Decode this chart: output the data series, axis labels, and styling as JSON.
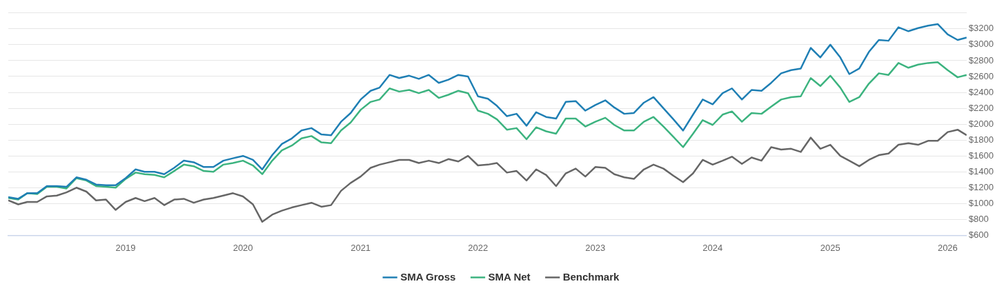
{
  "chart_data": {
    "type": "line",
    "x": [
      "2018-01",
      "2018-02",
      "2018-03",
      "2018-04",
      "2018-05",
      "2018-06",
      "2018-07",
      "2018-08",
      "2018-09",
      "2018-10",
      "2018-11",
      "2018-12",
      "2019-01",
      "2019-02",
      "2019-03",
      "2019-04",
      "2019-05",
      "2019-06",
      "2019-07",
      "2019-08",
      "2019-09",
      "2019-10",
      "2019-11",
      "2019-12",
      "2020-01",
      "2020-02",
      "2020-03",
      "2020-04",
      "2020-05",
      "2020-06",
      "2020-07",
      "2020-08",
      "2020-09",
      "2020-10",
      "2020-11",
      "2020-12",
      "2021-01",
      "2021-02",
      "2021-03",
      "2021-04",
      "2021-05",
      "2021-06",
      "2021-07",
      "2021-08",
      "2021-09",
      "2021-10",
      "2021-11",
      "2021-12",
      "2022-01",
      "2022-02",
      "2022-03",
      "2022-04",
      "2022-05",
      "2022-06",
      "2022-07",
      "2022-08",
      "2022-09",
      "2022-10",
      "2022-11",
      "2022-12",
      "2023-01",
      "2023-02",
      "2023-03",
      "2023-04",
      "2023-05",
      "2023-06",
      "2023-07",
      "2023-08",
      "2023-09",
      "2023-10",
      "2023-11",
      "2023-12",
      "2024-01",
      "2024-02",
      "2024-03",
      "2024-04",
      "2024-05",
      "2024-06",
      "2024-07",
      "2024-08",
      "2024-09",
      "2024-10",
      "2024-11",
      "2024-12",
      "2025-01",
      "2025-02",
      "2025-03",
      "2025-04",
      "2025-05",
      "2025-06",
      "2025-07",
      "2025-08",
      "2025-09",
      "2025-10",
      "2025-11",
      "2025-12",
      "2026-01",
      "2026-02",
      "2026-03"
    ],
    "series": [
      {
        "name": "SMA Gross",
        "color": "#1f7fb4",
        "values": [
          1080,
          1060,
          1130,
          1130,
          1220,
          1220,
          1210,
          1330,
          1300,
          1240,
          1230,
          1230,
          1320,
          1430,
          1400,
          1400,
          1370,
          1450,
          1540,
          1520,
          1460,
          1460,
          1540,
          1570,
          1600,
          1550,
          1430,
          1610,
          1750,
          1820,
          1920,
          1950,
          1870,
          1860,
          2030,
          2140,
          2310,
          2420,
          2460,
          2620,
          2580,
          2610,
          2570,
          2620,
          2520,
          2560,
          2620,
          2600,
          2350,
          2320,
          2230,
          2100,
          2130,
          1980,
          2150,
          2090,
          2070,
          2280,
          2290,
          2170,
          2240,
          2300,
          2210,
          2130,
          2140,
          2270,
          2340,
          2200,
          2060,
          1920,
          2120,
          2310,
          2250,
          2390,
          2450,
          2310,
          2430,
          2420,
          2520,
          2640,
          2680,
          2700,
          2960,
          2840,
          3000,
          2840,
          2630,
          2700,
          2910,
          3060,
          3050,
          3220,
          3170,
          3210,
          3240,
          3260,
          3130,
          3060,
          3090
        ]
      },
      {
        "name": "SMA Net",
        "color": "#3cb37f",
        "values": [
          1070,
          1050,
          1130,
          1120,
          1210,
          1210,
          1190,
          1320,
          1290,
          1220,
          1210,
          1200,
          1310,
          1390,
          1370,
          1360,
          1330,
          1410,
          1490,
          1470,
          1410,
          1400,
          1490,
          1510,
          1540,
          1480,
          1370,
          1540,
          1670,
          1730,
          1820,
          1850,
          1770,
          1760,
          1920,
          2020,
          2180,
          2280,
          2310,
          2450,
          2410,
          2430,
          2390,
          2430,
          2330,
          2370,
          2420,
          2390,
          2170,
          2130,
          2060,
          1930,
          1950,
          1810,
          1960,
          1910,
          1880,
          2070,
          2070,
          1970,
          2030,
          2080,
          1990,
          1920,
          1920,
          2030,
          2090,
          1970,
          1840,
          1710,
          1880,
          2050,
          1990,
          2120,
          2160,
          2030,
          2140,
          2130,
          2220,
          2310,
          2340,
          2350,
          2580,
          2480,
          2610,
          2460,
          2280,
          2340,
          2510,
          2640,
          2620,
          2770,
          2710,
          2750,
          2770,
          2780,
          2680,
          2590,
          2620
        ]
      },
      {
        "name": "Benchmark",
        "color": "#666666",
        "values": [
          1040,
          990,
          1020,
          1020,
          1090,
          1100,
          1140,
          1200,
          1150,
          1040,
          1050,
          920,
          1020,
          1070,
          1030,
          1070,
          980,
          1050,
          1060,
          1010,
          1050,
          1070,
          1100,
          1130,
          1090,
          990,
          770,
          860,
          910,
          950,
          980,
          1010,
          960,
          980,
          1160,
          1260,
          1340,
          1450,
          1490,
          1520,
          1550,
          1550,
          1510,
          1540,
          1510,
          1560,
          1530,
          1600,
          1480,
          1490,
          1510,
          1390,
          1410,
          1290,
          1430,
          1360,
          1220,
          1380,
          1440,
          1340,
          1460,
          1450,
          1370,
          1330,
          1310,
          1430,
          1490,
          1440,
          1350,
          1270,
          1380,
          1550,
          1490,
          1540,
          1590,
          1500,
          1580,
          1540,
          1710,
          1680,
          1690,
          1650,
          1830,
          1690,
          1740,
          1600,
          1540,
          1470,
          1550,
          1610,
          1630,
          1740,
          1760,
          1740,
          1790,
          1790,
          1900,
          1930,
          1860
        ]
      }
    ],
    "xlim": [
      "2018-01",
      "2026-03"
    ],
    "xticks": [
      "2019",
      "2020",
      "2021",
      "2022",
      "2023",
      "2024",
      "2025",
      "2026"
    ],
    "ylim": [
      600,
      3400
    ],
    "yticks": [
      {
        "value": 600,
        "label": "$600"
      },
      {
        "value": 800,
        "label": "$800"
      },
      {
        "value": 1000,
        "label": "$1000"
      },
      {
        "value": 1200,
        "label": "$1200"
      },
      {
        "value": 1400,
        "label": "$1400"
      },
      {
        "value": 1600,
        "label": "$1600"
      },
      {
        "value": 1800,
        "label": "$1800"
      },
      {
        "value": 2000,
        "label": "$2000"
      },
      {
        "value": 2200,
        "label": "$2200"
      },
      {
        "value": 2400,
        "label": "$2400"
      },
      {
        "value": 2600,
        "label": "$2600"
      },
      {
        "value": 2800,
        "label": "$2800"
      },
      {
        "value": 3000,
        "label": "$3000"
      },
      {
        "value": 3200,
        "label": "$3200"
      },
      {
        "value": 3400,
        "label": null
      }
    ],
    "grid": "y",
    "legend": "bottom",
    "marker": "none",
    "line_style": "solid"
  }
}
